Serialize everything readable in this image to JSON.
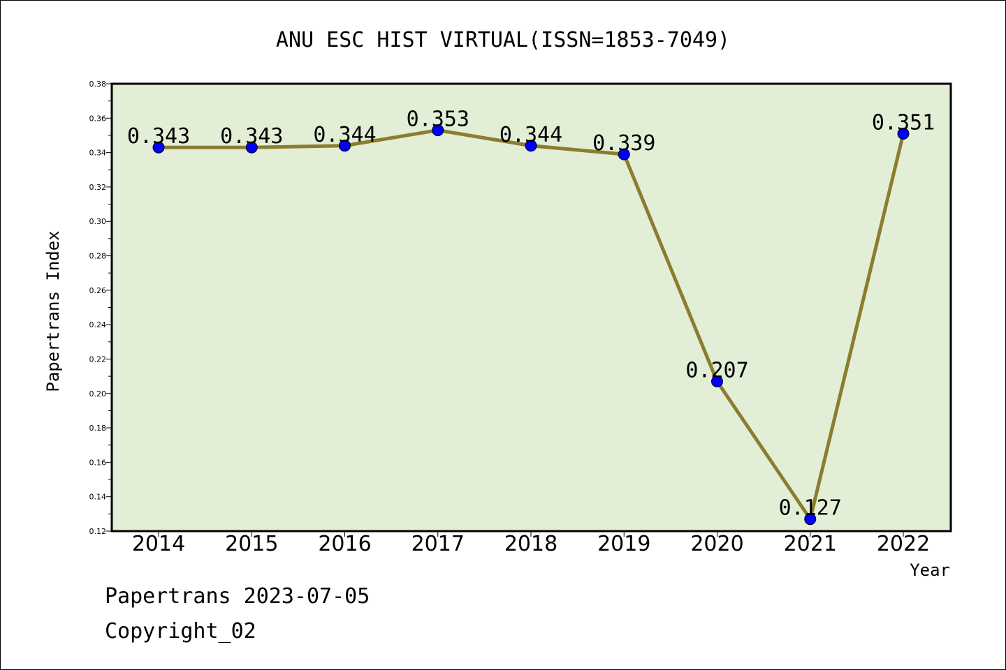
{
  "chart_data": {
    "type": "line",
    "title": "ANU ESC HIST VIRTUAL(ISSN=1853-7049)",
    "xlabel": "Year",
    "ylabel": "Papertrans Index",
    "categories": [
      "2014",
      "2015",
      "2016",
      "2017",
      "2018",
      "2019",
      "2020",
      "2021",
      "2022"
    ],
    "series": [
      {
        "values": [
          0.343,
          0.343,
          0.344,
          0.353,
          0.344,
          0.339,
          0.207,
          0.127,
          0.351
        ],
        "data_labels": [
          "0.343",
          "0.343",
          "0.344",
          "0.353",
          "0.344",
          "0.339",
          "0.207",
          "0.127",
          "0.351"
        ]
      }
    ],
    "ylim": [
      0.12,
      0.38
    ],
    "yticks": [
      "0.12",
      "0.14",
      "0.16",
      "0.18",
      "0.20",
      "0.22",
      "0.24",
      "0.26",
      "0.28",
      "0.30",
      "0.32",
      "0.34",
      "0.36",
      "0.38"
    ],
    "grid": false,
    "colors": {
      "plot_background": "#e2efd6",
      "line": "#8b7d30",
      "marker": "#0000ff"
    }
  },
  "footer": {
    "line1": "Papertrans 2023-07-05",
    "line2": "Copyright_02"
  }
}
